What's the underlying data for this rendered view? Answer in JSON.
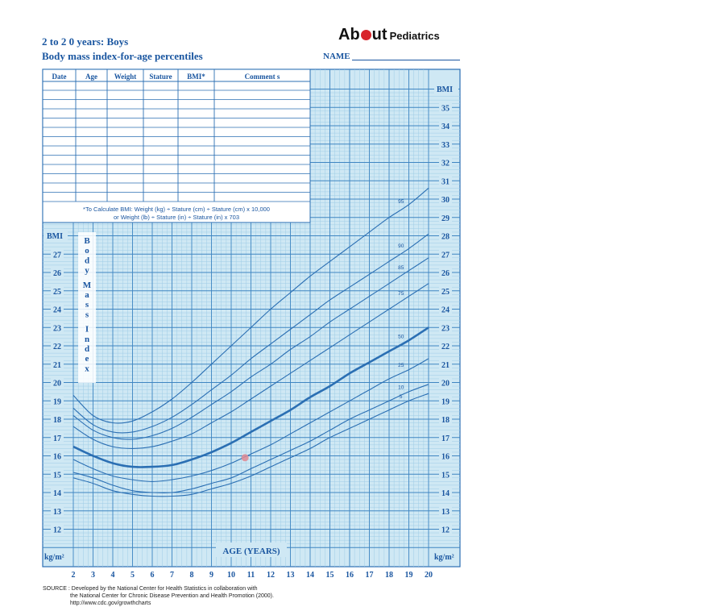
{
  "header": {
    "title_line1": "2 to 2 0 years:  Boys",
    "title_line2": "Body mass index-for-age percentiles",
    "brand_pre": "Ab",
    "brand_post": "ut",
    "brand_suffix": "Pediatrics",
    "name_label": "NAME"
  },
  "record_table": {
    "columns": [
      "Date",
      "Age",
      "Weight",
      "Stature",
      "BMI*",
      "Comment s"
    ],
    "formula_line1": "*To Calculate BMI: Weight (kg) ÷ Stature (cm) ÷ Stature (cm) x 10,000",
    "formula_line2": "or Weight (lb) ÷ Stature (in) ÷ Stature (in) x 703"
  },
  "axis_labels": {
    "bmi_left": "BMI",
    "bmi_right": "BMI",
    "unit_left": "kg/m²",
    "unit_right": "kg/m²",
    "x_title": "AGE (YEARS)",
    "vertical_title": "Body Mass Index"
  },
  "source": {
    "line1": "SOURCE : Developed by the National Center for Health Statistics in collaboration with",
    "line2": "the National Center for Chronic Disease Prevention and Health Promotion (2000).",
    "line3": "http://www.cdc.gov/growthcharts"
  },
  "colors": {
    "grid_fill": "#cfe8f4",
    "minor_grid": "#9fcde6",
    "major_grid": "#3f86c2",
    "curve": "#2b6fb3",
    "marker": "#e08a93"
  },
  "chart_data": {
    "type": "line",
    "x_ticks": [
      2,
      3,
      4,
      5,
      6,
      7,
      8,
      9,
      10,
      11,
      12,
      13,
      14,
      15,
      16,
      17,
      18,
      19,
      20
    ],
    "y_ticks_left": [
      12,
      13,
      14,
      15,
      16,
      17,
      18,
      19,
      20,
      21,
      22,
      23,
      24,
      25,
      26,
      27
    ],
    "y_ticks_right": [
      12,
      13,
      14,
      15,
      16,
      17,
      18,
      19,
      20,
      21,
      22,
      23,
      24,
      25,
      26,
      27,
      28,
      29,
      30,
      31,
      32,
      33,
      34,
      35
    ],
    "xlim": [
      2,
      20
    ],
    "ylim": [
      11,
      36
    ],
    "xlabel": "AGE (YEARS)",
    "ylabel": "BMI",
    "ages": [
      2,
      3,
      4,
      5,
      6,
      7,
      8,
      9,
      10,
      11,
      12,
      13,
      14,
      15,
      16,
      17,
      18,
      19,
      20
    ],
    "series": [
      {
        "name": "95",
        "values": [
          19.3,
          18.2,
          17.8,
          17.9,
          18.4,
          19.1,
          20.0,
          21.0,
          22.0,
          23.0,
          24.0,
          24.9,
          25.8,
          26.6,
          27.4,
          28.2,
          29.0,
          29.7,
          30.6
        ]
      },
      {
        "name": "90",
        "values": [
          18.6,
          17.7,
          17.3,
          17.3,
          17.6,
          18.1,
          18.8,
          19.6,
          20.4,
          21.3,
          22.1,
          22.9,
          23.7,
          24.5,
          25.2,
          25.9,
          26.6,
          27.3,
          28.1
        ]
      },
      {
        "name": "85",
        "values": [
          18.2,
          17.4,
          17.0,
          16.9,
          17.1,
          17.5,
          18.1,
          18.8,
          19.5,
          20.3,
          21.0,
          21.8,
          22.5,
          23.3,
          24.0,
          24.7,
          25.4,
          26.1,
          26.8
        ]
      },
      {
        "name": "75",
        "values": [
          17.6,
          16.9,
          16.5,
          16.4,
          16.5,
          16.8,
          17.2,
          17.8,
          18.4,
          19.1,
          19.8,
          20.5,
          21.2,
          21.9,
          22.6,
          23.3,
          24.0,
          24.7,
          25.4
        ]
      },
      {
        "name": "50",
        "values": [
          16.5,
          16.0,
          15.6,
          15.4,
          15.4,
          15.5,
          15.8,
          16.2,
          16.7,
          17.3,
          17.9,
          18.5,
          19.2,
          19.8,
          20.5,
          21.1,
          21.7,
          22.3,
          23.0
        ]
      },
      {
        "name": "25",
        "values": [
          15.8,
          15.3,
          14.9,
          14.7,
          14.6,
          14.7,
          14.9,
          15.2,
          15.6,
          16.1,
          16.6,
          17.2,
          17.8,
          18.4,
          19.0,
          19.6,
          20.2,
          20.7,
          21.3
        ]
      },
      {
        "name": "10",
        "values": [
          15.1,
          14.8,
          14.4,
          14.1,
          14.0,
          14.0,
          14.2,
          14.5,
          14.8,
          15.3,
          15.8,
          16.3,
          16.8,
          17.4,
          18.0,
          18.5,
          19.0,
          19.5,
          19.9
        ]
      },
      {
        "name": "5",
        "values": [
          14.8,
          14.5,
          14.1,
          13.9,
          13.8,
          13.8,
          13.9,
          14.2,
          14.5,
          14.9,
          15.4,
          15.9,
          16.4,
          17.0,
          17.5,
          18.0,
          18.5,
          19.0,
          19.4
        ]
      }
    ],
    "points": [
      {
        "age": 10.7,
        "bmi": 15.9
      }
    ],
    "grid": true
  }
}
